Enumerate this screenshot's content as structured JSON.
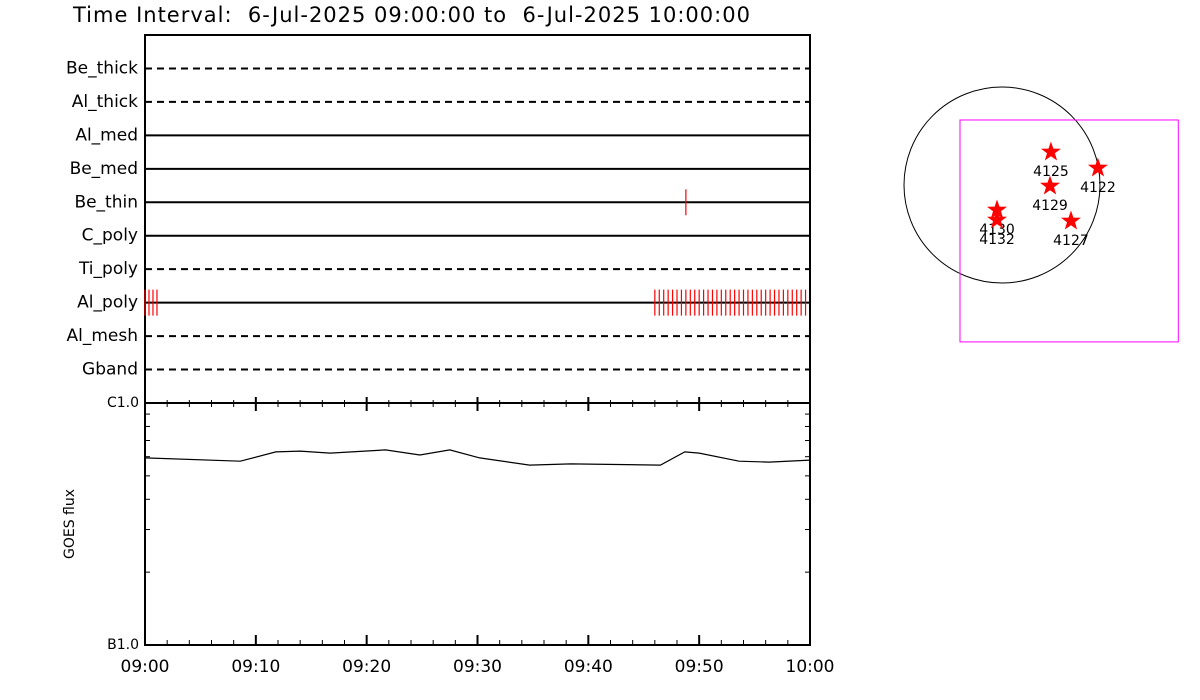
{
  "title": "Time Interval:  6-Jul-2025 09:00:00 to  6-Jul-2025 10:00:00",
  "chart_data": [
    {
      "type": "timeline",
      "categories": [
        "Be_thick",
        "Al_thick",
        "Al_med",
        "Be_med",
        "Be_thin",
        "C_poly",
        "Ti_poly",
        "Al_poly",
        "Al_mesh",
        "Gband"
      ],
      "line_styles": [
        "dashed",
        "dashed",
        "solid",
        "solid",
        "solid",
        "solid",
        "dashed",
        "solid",
        "dashed",
        "dashed"
      ],
      "events": [
        [],
        [],
        [],
        [],
        [
          48.8
        ],
        [],
        [],
        [
          0,
          0.36,
          0.72,
          1.08,
          46.0,
          46.4,
          46.8,
          47.2,
          47.6,
          48.0,
          48.4,
          48.8,
          49.2,
          49.6,
          50.0,
          50.4,
          50.8,
          51.2,
          51.6,
          52.0,
          52.4,
          52.8,
          53.2,
          53.6,
          54.0,
          54.4,
          54.8,
          55.2,
          55.6,
          56.0,
          56.4,
          56.8,
          57.2,
          57.6,
          58.0,
          58.4,
          58.8,
          59.2,
          59.6
        ],
        [],
        []
      ],
      "color": "#ff0000",
      "xlim": [
        0,
        60
      ]
    },
    {
      "type": "line",
      "ylabel": "GOES flux",
      "x": [
        0,
        8.6,
        11.8,
        14,
        16.7,
        21.7,
        24.8,
        27.5,
        30.2,
        34.7,
        38.4,
        46.5,
        48.7,
        50,
        53.6,
        56.3,
        60
      ],
      "values": [
        5.93e-07,
        5.75e-07,
        6.28e-07,
        6.33e-07,
        6.21e-07,
        6.4e-07,
        6.1e-07,
        6.4e-07,
        5.93e-07,
        5.54e-07,
        5.6e-07,
        5.54e-07,
        6.28e-07,
        6.21e-07,
        5.75e-07,
        5.7e-07,
        5.81e-07
      ],
      "color": "#000000",
      "log_y": true,
      "ylim": [
        1e-07,
        1e-06
      ],
      "yticks": [
        {
          "value": 1e-07,
          "label": "B1.0"
        },
        {
          "value": 1e-06,
          "label": "C1.0"
        }
      ],
      "xlim": [
        0,
        60
      ],
      "xticks": [
        {
          "value": 0,
          "label": "09:00"
        },
        {
          "value": 10,
          "label": "09:10"
        },
        {
          "value": 20,
          "label": "09:20"
        },
        {
          "value": 30,
          "label": "09:30"
        },
        {
          "value": 40,
          "label": "09:40"
        },
        {
          "value": 50,
          "label": "09:50"
        },
        {
          "value": 60,
          "label": "10:00"
        }
      ]
    },
    {
      "type": "map",
      "solar_radius": 945,
      "fov": {
        "x": [
          -405,
          1700
        ],
        "y": [
          -1513,
          627
        ],
        "color": "#ff00ff"
      },
      "color": "#ff0000",
      "regions": [
        {
          "label": "4125",
          "x": 472,
          "y": 318
        },
        {
          "label": "4122",
          "x": 925,
          "y": 164
        },
        {
          "label": "4129",
          "x": 463,
          "y": -10
        },
        {
          "label": "4130",
          "x": -48,
          "y": -241
        },
        {
          "label": "4132",
          "x": -48,
          "y": -337
        },
        {
          "label": "4127",
          "x": 665,
          "y": -347
        }
      ]
    }
  ]
}
